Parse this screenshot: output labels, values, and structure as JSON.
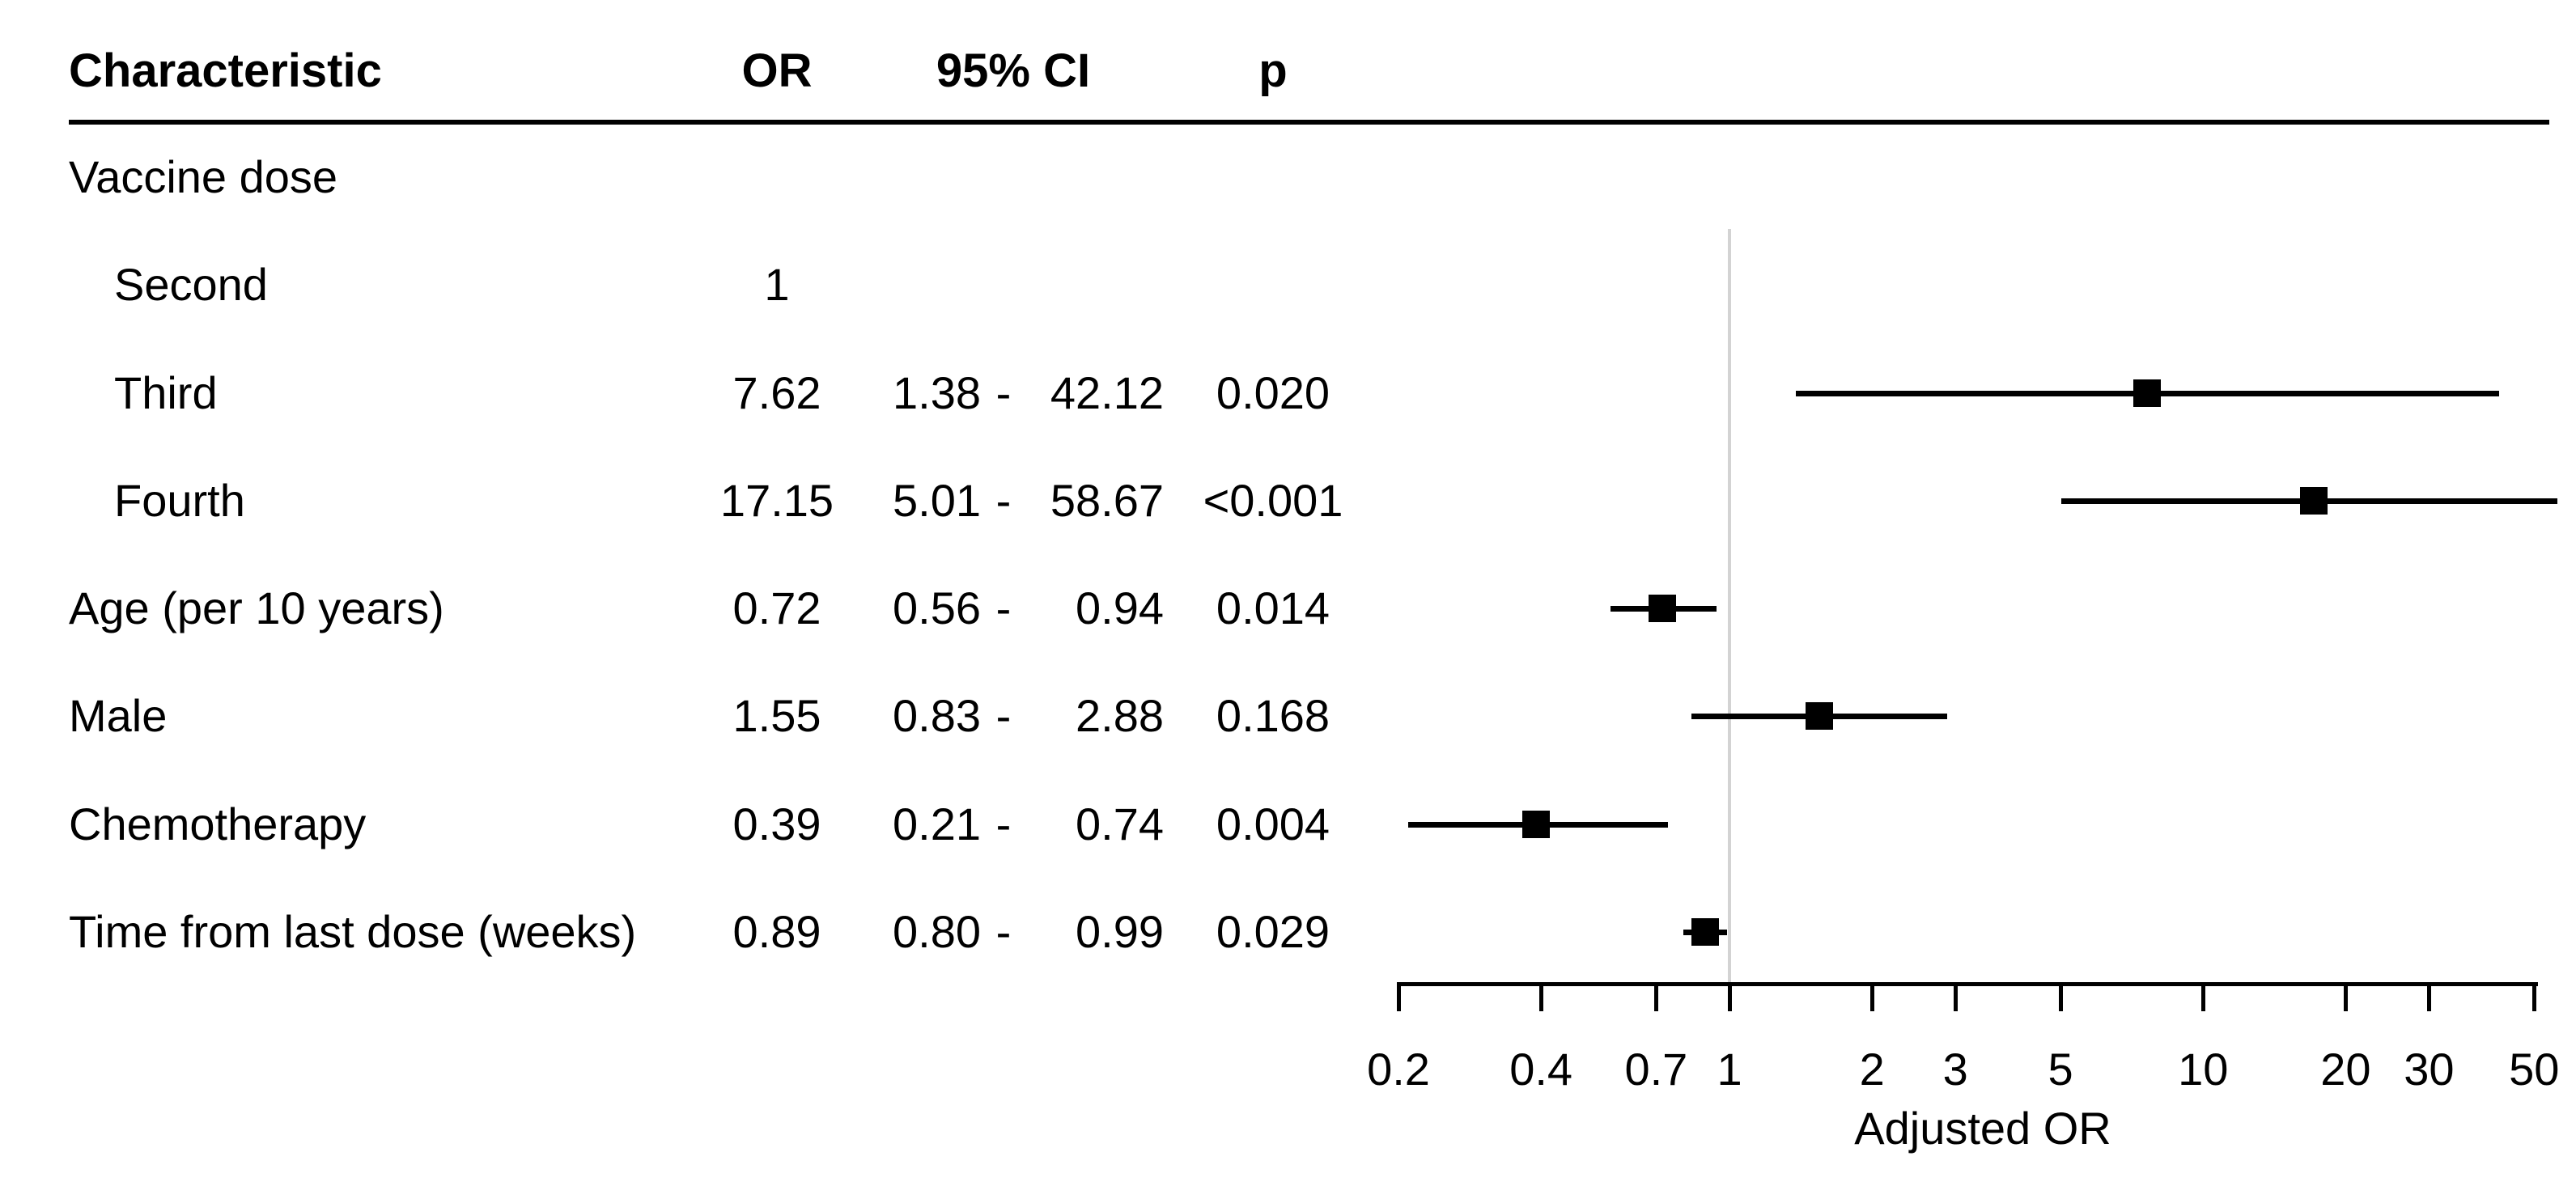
{
  "table": {
    "headers": {
      "characteristic": "Characteristic",
      "or": "OR",
      "ci": "95% CI",
      "p": "p"
    },
    "ci_separator": "-",
    "rows": [
      {
        "label": "Vaccine dose",
        "indent": false,
        "or": "",
        "ci_low": "",
        "ci_high": "",
        "p": ""
      },
      {
        "label": "Second",
        "indent": true,
        "or": "1",
        "ci_low": "",
        "ci_high": "",
        "p": ""
      },
      {
        "label": "Third",
        "indent": true,
        "or": "7.62",
        "ci_low": "1.38",
        "ci_high": "42.12",
        "p": "0.020"
      },
      {
        "label": "Fourth",
        "indent": true,
        "or": "17.15",
        "ci_low": "5.01",
        "ci_high": "58.67",
        "p": "<0.001"
      },
      {
        "label": "Age (per 10 years)",
        "indent": false,
        "or": "0.72",
        "ci_low": "0.56",
        "ci_high": "0.94",
        "p": "0.014"
      },
      {
        "label": "Male",
        "indent": false,
        "or": "1.55",
        "ci_low": "0.83",
        "ci_high": "2.88",
        "p": "0.168"
      },
      {
        "label": "Chemotherapy",
        "indent": false,
        "or": "0.39",
        "ci_low": "0.21",
        "ci_high": "0.74",
        "p": "0.004"
      },
      {
        "label": "Time from last dose (weeks)",
        "indent": false,
        "or": "0.89",
        "ci_low": "0.80",
        "ci_high": "0.99",
        "p": "0.029"
      }
    ]
  },
  "chart_data": {
    "type": "scatter",
    "subtype": "forest-plot",
    "title": "",
    "xlabel": "Adjusted OR",
    "x_scale": "log",
    "x_range": [
      0.2,
      50
    ],
    "x_ticks": [
      0.2,
      0.4,
      0.7,
      1,
      2,
      3,
      5,
      10,
      20,
      30,
      50
    ],
    "reference_line": 1,
    "points": [
      {
        "row_label": "Third",
        "or": 7.62,
        "ci_low": 1.38,
        "ci_high": 42.12
      },
      {
        "row_label": "Fourth",
        "or": 17.15,
        "ci_low": 5.01,
        "ci_high": 58.67
      },
      {
        "row_label": "Age (per 10 years)",
        "or": 0.72,
        "ci_low": 0.56,
        "ci_high": 0.94
      },
      {
        "row_label": "Male",
        "or": 1.55,
        "ci_low": 0.83,
        "ci_high": 2.88
      },
      {
        "row_label": "Chemotherapy",
        "or": 0.39,
        "ci_low": 0.21,
        "ci_high": 0.74
      },
      {
        "row_label": "Time from last dose (weeks)",
        "or": 0.89,
        "ci_low": 0.8,
        "ci_high": 0.99
      }
    ],
    "colors": {
      "marker": "#000000",
      "ci_line": "#000000",
      "reference_line": "#d3d3d3",
      "axis": "#000000",
      "text": "#000000"
    }
  }
}
